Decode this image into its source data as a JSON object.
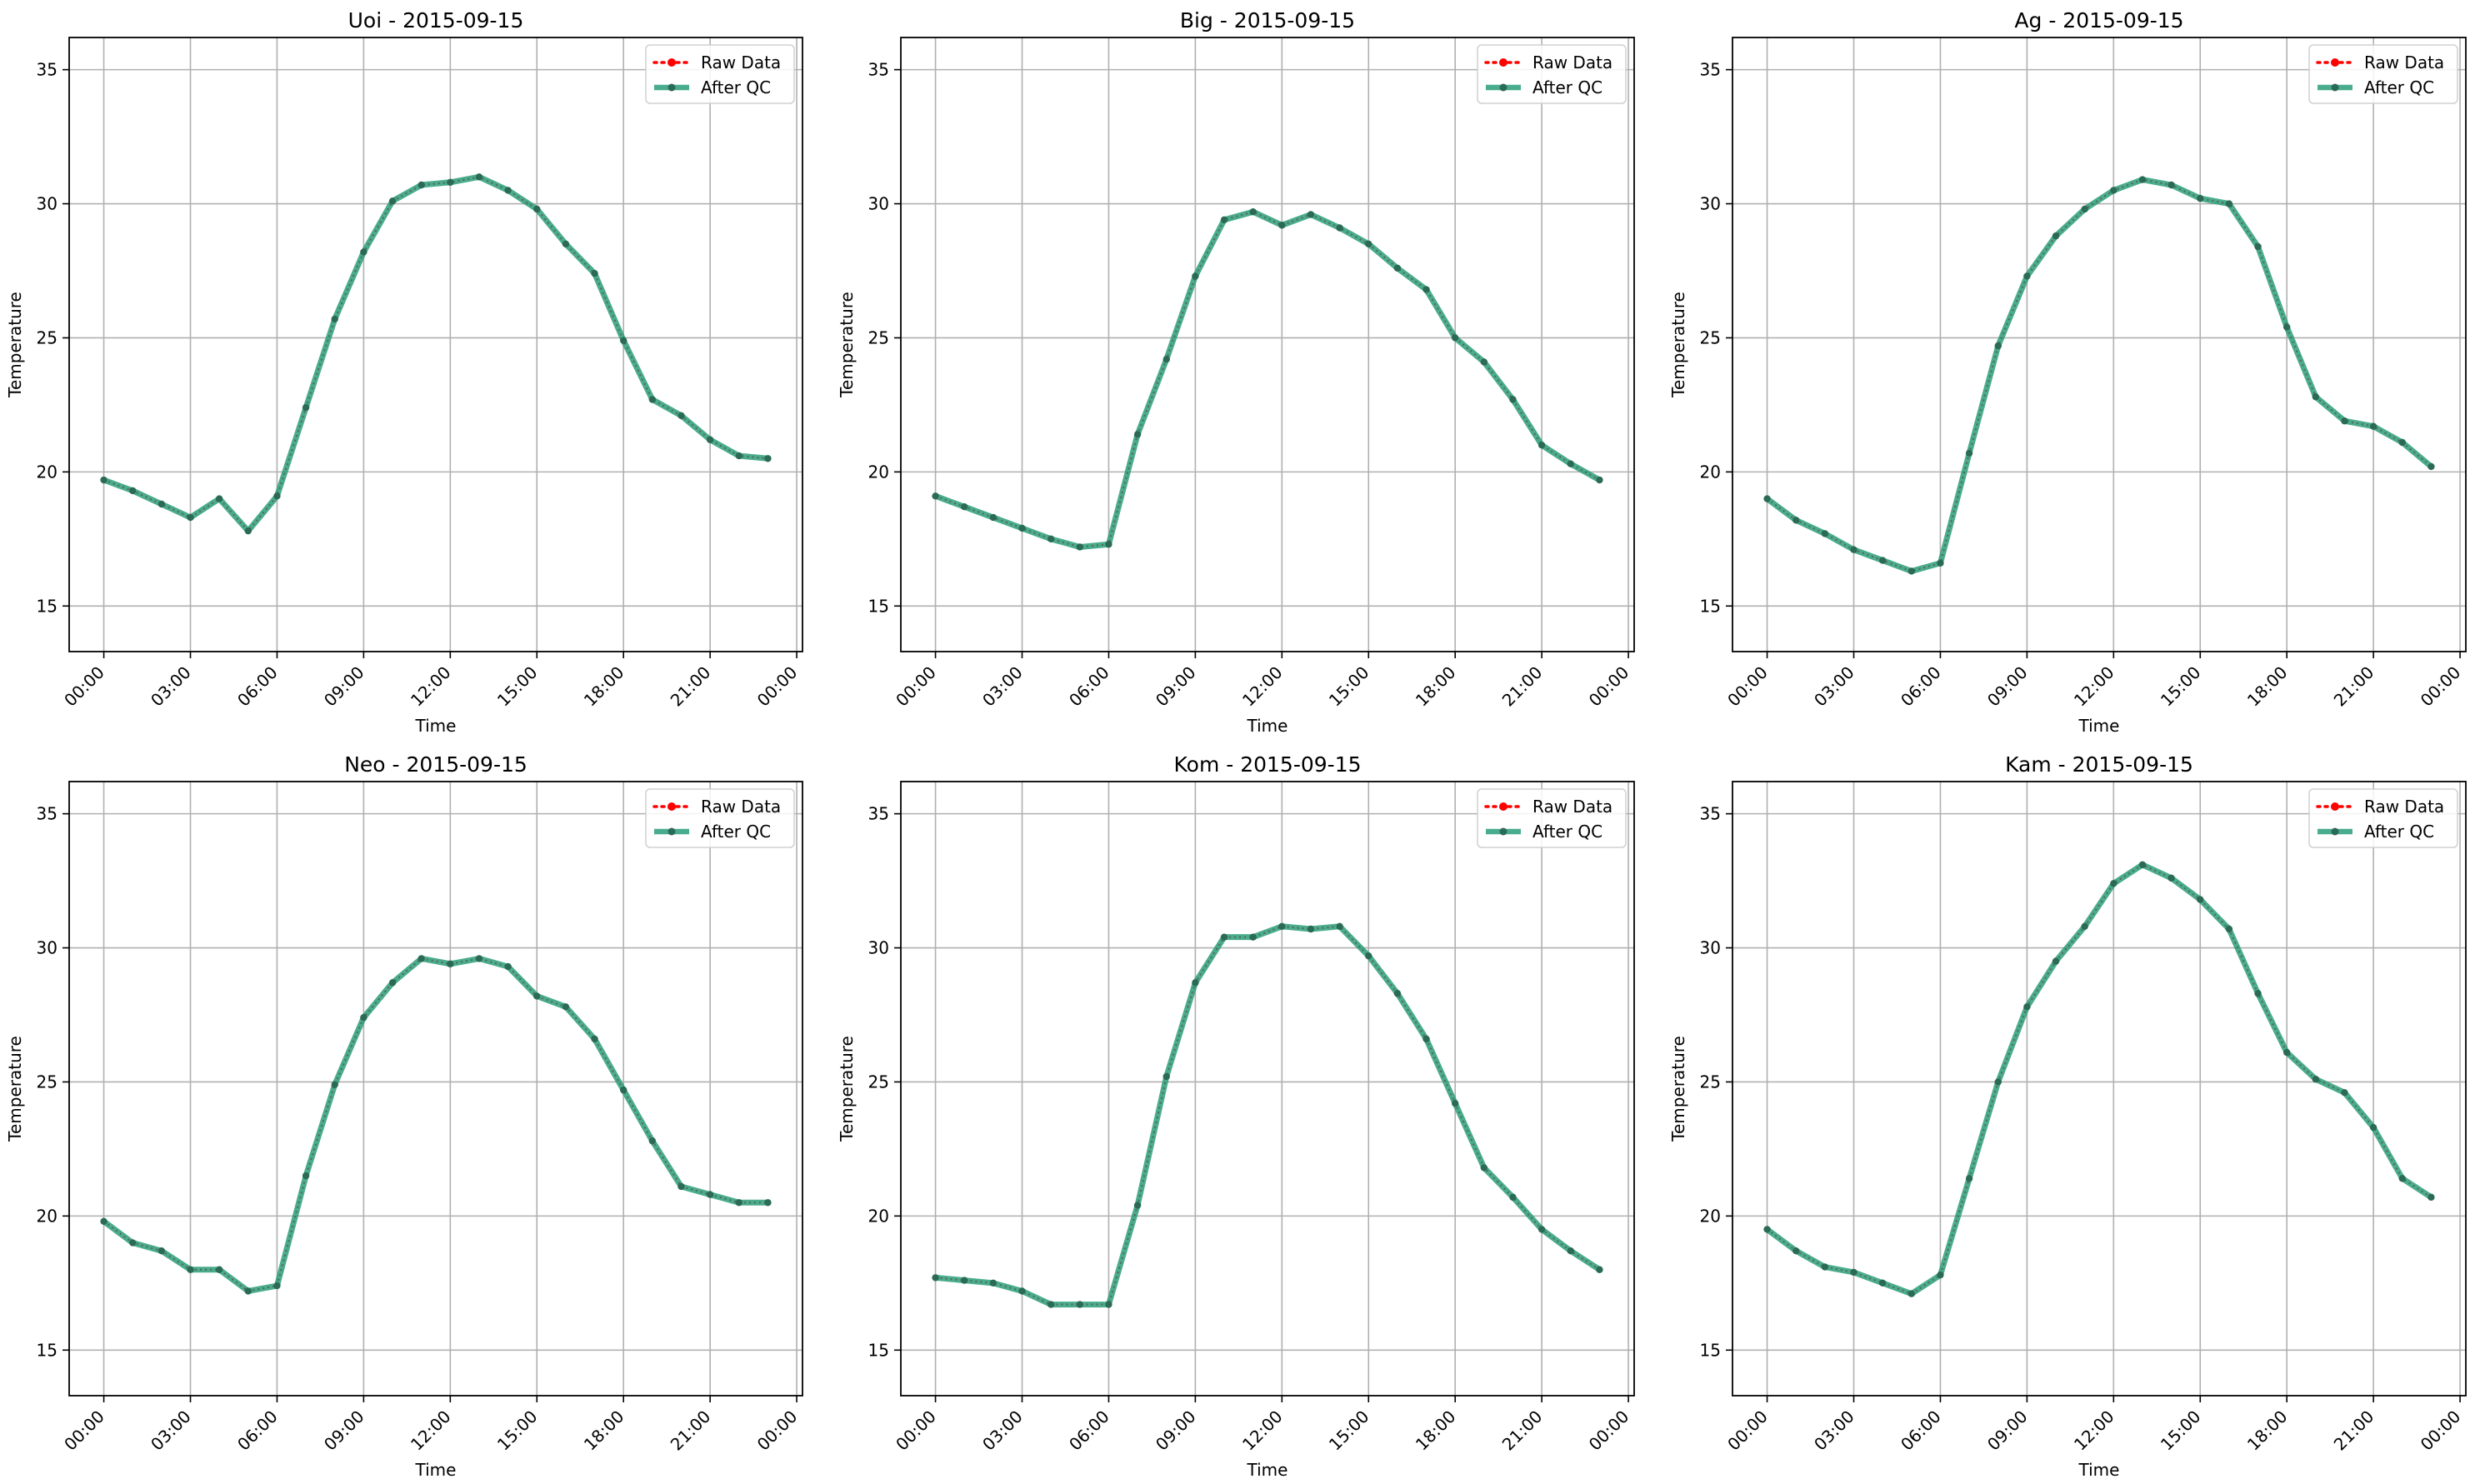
{
  "chart_data": [
    {
      "type": "line",
      "title": "Uoi - 2015-09-15",
      "xlabel": "Time",
      "ylabel": "Temperature",
      "xticks": [
        "00:00",
        "03:00",
        "06:00",
        "09:00",
        "12:00",
        "15:00",
        "18:00",
        "21:00",
        "00:00"
      ],
      "yticks": [
        15,
        20,
        25,
        30,
        35
      ],
      "ylim": [
        13.3,
        36.2
      ],
      "xlim_hours": [
        -1.2,
        24.2
      ],
      "x_hours": [
        0,
        1,
        2,
        3,
        4,
        5,
        6,
        7,
        8,
        9,
        10,
        11,
        12,
        13,
        14,
        15,
        16,
        17,
        18,
        19,
        20,
        21,
        22,
        23
      ],
      "grid": true,
      "legend_position": "top-right",
      "series": [
        {
          "name": "Raw Data",
          "color": "#ff0000",
          "style": "dotted",
          "values": [
            19.7,
            19.3,
            18.8,
            18.3,
            19.0,
            17.8,
            19.1,
            22.4,
            25.7,
            28.2,
            30.1,
            30.7,
            30.8,
            31.0,
            30.5,
            29.8,
            28.5,
            27.4,
            24.9,
            22.7,
            22.1,
            21.2,
            20.6,
            20.5
          ]
        },
        {
          "name": "After QC",
          "color": "#2a9d7a",
          "style": "solid",
          "values": [
            19.7,
            19.3,
            18.8,
            18.3,
            19.0,
            17.8,
            19.1,
            22.4,
            25.7,
            28.2,
            30.1,
            30.7,
            30.8,
            31.0,
            30.5,
            29.8,
            28.5,
            27.4,
            24.9,
            22.7,
            22.1,
            21.2,
            20.6,
            20.5
          ]
        }
      ]
    },
    {
      "type": "line",
      "title": "Big - 2015-09-15",
      "xlabel": "Time",
      "ylabel": "Temperature",
      "xticks": [
        "00:00",
        "03:00",
        "06:00",
        "09:00",
        "12:00",
        "15:00",
        "18:00",
        "21:00",
        "00:00"
      ],
      "yticks": [
        15,
        20,
        25,
        30,
        35
      ],
      "ylim": [
        13.3,
        36.2
      ],
      "xlim_hours": [
        -1.2,
        24.2
      ],
      "x_hours": [
        0,
        1,
        2,
        3,
        4,
        5,
        6,
        7,
        8,
        9,
        10,
        11,
        12,
        13,
        14,
        15,
        16,
        17,
        18,
        19,
        20,
        21,
        22,
        23
      ],
      "grid": true,
      "legend_position": "top-right",
      "series": [
        {
          "name": "Raw Data",
          "color": "#ff0000",
          "style": "dotted",
          "values": [
            19.1,
            18.7,
            18.3,
            17.9,
            17.5,
            17.2,
            17.3,
            21.4,
            24.2,
            27.3,
            29.4,
            29.7,
            29.2,
            29.6,
            29.1,
            28.5,
            27.6,
            26.8,
            25.0,
            24.1,
            22.7,
            21.0,
            20.3,
            19.7
          ]
        },
        {
          "name": "After QC",
          "color": "#2a9d7a",
          "style": "solid",
          "values": [
            19.1,
            18.7,
            18.3,
            17.9,
            17.5,
            17.2,
            17.3,
            21.4,
            24.2,
            27.3,
            29.4,
            29.7,
            29.2,
            29.6,
            29.1,
            28.5,
            27.6,
            26.8,
            25.0,
            24.1,
            22.7,
            21.0,
            20.3,
            19.7
          ]
        }
      ]
    },
    {
      "type": "line",
      "title": "Ag - 2015-09-15",
      "xlabel": "Time",
      "ylabel": "Temperature",
      "xticks": [
        "00:00",
        "03:00",
        "06:00",
        "09:00",
        "12:00",
        "15:00",
        "18:00",
        "21:00",
        "00:00"
      ],
      "yticks": [
        15,
        20,
        25,
        30,
        35
      ],
      "ylim": [
        13.3,
        36.2
      ],
      "xlim_hours": [
        -1.2,
        24.2
      ],
      "x_hours": [
        0,
        1,
        2,
        3,
        4,
        5,
        6,
        7,
        8,
        9,
        10,
        11,
        12,
        13,
        14,
        15,
        16,
        17,
        18,
        19,
        20,
        21,
        22,
        23
      ],
      "grid": true,
      "legend_position": "top-right",
      "series": [
        {
          "name": "Raw Data",
          "color": "#ff0000",
          "style": "dotted",
          "values": [
            19.0,
            18.2,
            17.7,
            17.1,
            16.7,
            16.3,
            16.6,
            20.7,
            24.7,
            27.3,
            28.8,
            29.8,
            30.5,
            30.9,
            30.7,
            30.2,
            30.0,
            28.4,
            25.4,
            22.8,
            21.9,
            21.7,
            21.1,
            20.2
          ]
        },
        {
          "name": "After QC",
          "color": "#2a9d7a",
          "style": "solid",
          "values": [
            19.0,
            18.2,
            17.7,
            17.1,
            16.7,
            16.3,
            16.6,
            20.7,
            24.7,
            27.3,
            28.8,
            29.8,
            30.5,
            30.9,
            30.7,
            30.2,
            30.0,
            28.4,
            25.4,
            22.8,
            21.9,
            21.7,
            21.1,
            20.2
          ]
        }
      ]
    },
    {
      "type": "line",
      "title": "Neo - 2015-09-15",
      "xlabel": "Time",
      "ylabel": "Temperature",
      "xticks": [
        "00:00",
        "03:00",
        "06:00",
        "09:00",
        "12:00",
        "15:00",
        "18:00",
        "21:00",
        "00:00"
      ],
      "yticks": [
        15,
        20,
        25,
        30,
        35
      ],
      "ylim": [
        13.3,
        36.2
      ],
      "xlim_hours": [
        -1.2,
        24.2
      ],
      "x_hours": [
        0,
        1,
        2,
        3,
        4,
        5,
        6,
        7,
        8,
        9,
        10,
        11,
        12,
        13,
        14,
        15,
        16,
        17,
        18,
        19,
        20,
        21,
        22,
        23
      ],
      "grid": true,
      "legend_position": "top-right",
      "series": [
        {
          "name": "Raw Data",
          "color": "#ff0000",
          "style": "dotted",
          "values": [
            19.8,
            19.0,
            18.7,
            18.0,
            18.0,
            17.2,
            17.4,
            21.5,
            24.9,
            27.4,
            28.7,
            29.6,
            29.4,
            29.6,
            29.3,
            28.2,
            27.8,
            26.6,
            24.7,
            22.8,
            21.1,
            20.8,
            20.5,
            20.5
          ]
        },
        {
          "name": "After QC",
          "color": "#2a9d7a",
          "style": "solid",
          "values": [
            19.8,
            19.0,
            18.7,
            18.0,
            18.0,
            17.2,
            17.4,
            21.5,
            24.9,
            27.4,
            28.7,
            29.6,
            29.4,
            29.6,
            29.3,
            28.2,
            27.8,
            26.6,
            24.7,
            22.8,
            21.1,
            20.8,
            20.5,
            20.5
          ]
        }
      ]
    },
    {
      "type": "line",
      "title": "Kom - 2015-09-15",
      "xlabel": "Time",
      "ylabel": "Temperature",
      "xticks": [
        "00:00",
        "03:00",
        "06:00",
        "09:00",
        "12:00",
        "15:00",
        "18:00",
        "21:00",
        "00:00"
      ],
      "yticks": [
        15,
        20,
        25,
        30,
        35
      ],
      "ylim": [
        13.3,
        36.2
      ],
      "xlim_hours": [
        -1.2,
        24.2
      ],
      "x_hours": [
        0,
        1,
        2,
        3,
        4,
        5,
        6,
        7,
        8,
        9,
        10,
        11,
        12,
        13,
        14,
        15,
        16,
        17,
        18,
        19,
        20,
        21,
        22,
        23
      ],
      "grid": true,
      "legend_position": "top-right",
      "series": [
        {
          "name": "Raw Data",
          "color": "#ff0000",
          "style": "dotted",
          "values": [
            17.7,
            17.6,
            17.5,
            17.2,
            16.7,
            16.7,
            16.7,
            20.4,
            25.2,
            28.7,
            30.4,
            30.4,
            30.8,
            30.7,
            30.8,
            29.7,
            28.3,
            26.6,
            24.2,
            21.8,
            20.7,
            19.5,
            18.7,
            18.0
          ]
        },
        {
          "name": "After QC",
          "color": "#2a9d7a",
          "style": "solid",
          "values": [
            17.7,
            17.6,
            17.5,
            17.2,
            16.7,
            16.7,
            16.7,
            20.4,
            25.2,
            28.7,
            30.4,
            30.4,
            30.8,
            30.7,
            30.8,
            29.7,
            28.3,
            26.6,
            24.2,
            21.8,
            20.7,
            19.5,
            18.7,
            18.0
          ]
        }
      ]
    },
    {
      "type": "line",
      "title": "Kam - 2015-09-15",
      "xlabel": "Time",
      "ylabel": "Temperature",
      "xticks": [
        "00:00",
        "03:00",
        "06:00",
        "09:00",
        "12:00",
        "15:00",
        "18:00",
        "21:00",
        "00:00"
      ],
      "yticks": [
        15,
        20,
        25,
        30,
        35
      ],
      "ylim": [
        13.3,
        36.2
      ],
      "xlim_hours": [
        -1.2,
        24.2
      ],
      "x_hours": [
        0,
        1,
        2,
        3,
        4,
        5,
        6,
        7,
        8,
        9,
        10,
        11,
        12,
        13,
        14,
        15,
        16,
        17,
        18,
        19,
        20,
        21,
        22,
        23
      ],
      "grid": true,
      "legend_position": "top-right",
      "series": [
        {
          "name": "Raw Data",
          "color": "#ff0000",
          "style": "dotted",
          "values": [
            19.5,
            18.7,
            18.1,
            17.9,
            17.5,
            17.1,
            17.8,
            21.4,
            25.0,
            27.8,
            29.5,
            30.8,
            32.4,
            33.1,
            32.6,
            31.8,
            30.7,
            28.3,
            26.1,
            25.1,
            24.6,
            23.3,
            21.4,
            20.7
          ]
        },
        {
          "name": "After QC",
          "color": "#2a9d7a",
          "style": "solid",
          "values": [
            19.5,
            18.7,
            18.1,
            17.9,
            17.5,
            17.1,
            17.8,
            21.4,
            25.0,
            27.8,
            29.5,
            30.8,
            32.4,
            33.1,
            32.6,
            31.8,
            30.7,
            28.3,
            26.1,
            25.1,
            24.6,
            23.3,
            21.4,
            20.7
          ]
        }
      ]
    }
  ]
}
